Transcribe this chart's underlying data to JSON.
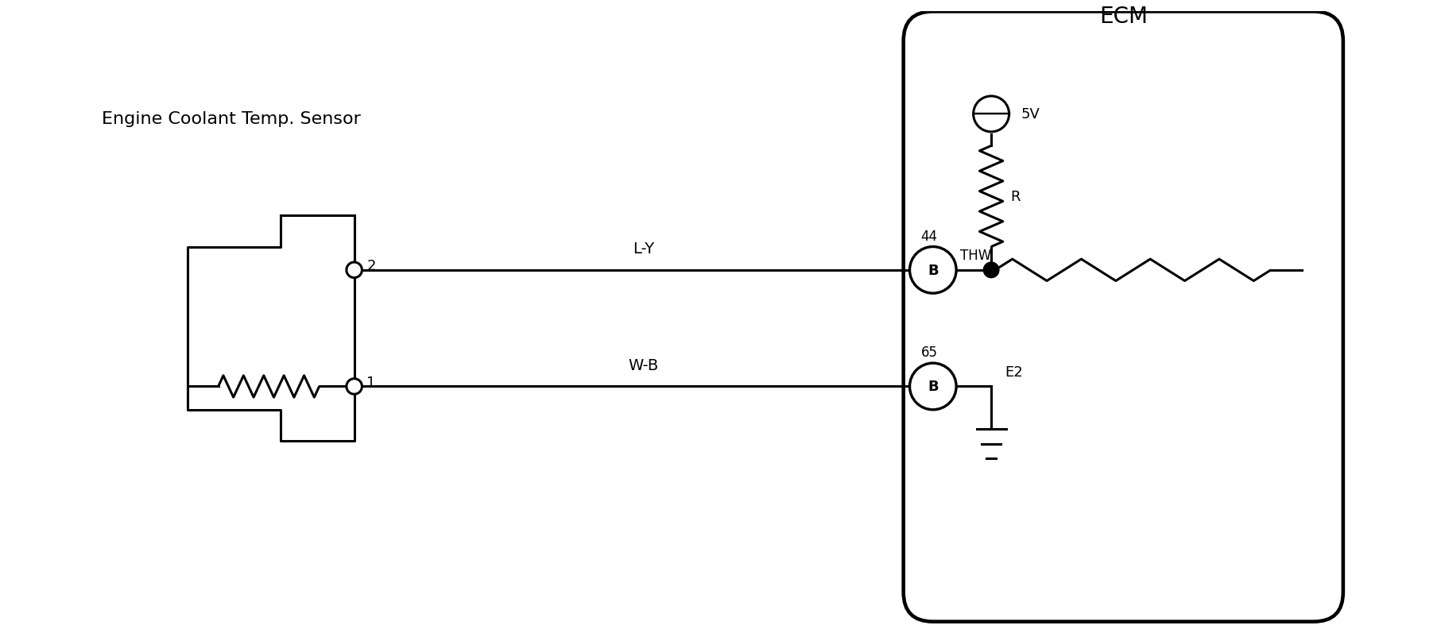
{
  "bg_color": "#ffffff",
  "line_color": "#000000",
  "line_width": 2.2,
  "title_ecm": "ECM",
  "title_sensor": "Engine Coolant Temp. Sensor",
  "label_ly": "L-Y",
  "label_wb": "W-B",
  "label_44": "44",
  "label_65": "65",
  "label_thw": "THW",
  "label_e2": "E2",
  "label_r": "R",
  "label_5v": "5V",
  "label_2": "2",
  "label_1": "1",
  "label_b": "B"
}
